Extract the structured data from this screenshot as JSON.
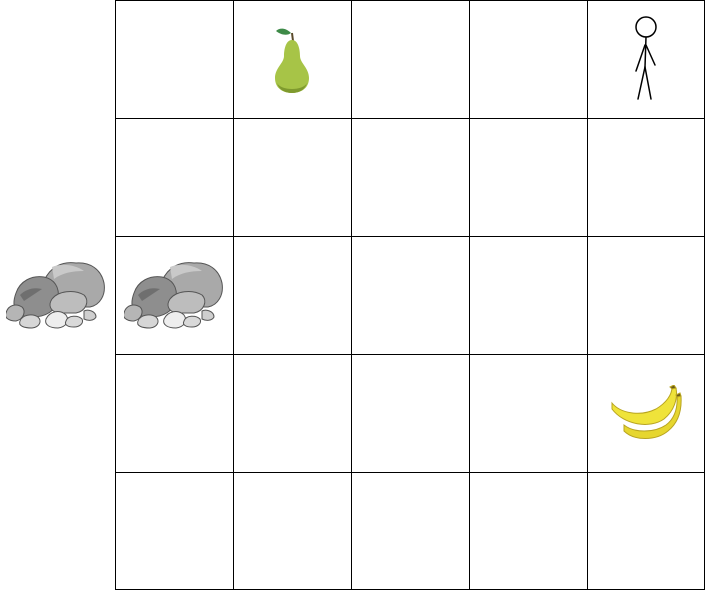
{
  "game": {
    "grid": {
      "rows": 5,
      "cols": 5,
      "line_color": "#000000"
    },
    "items": [
      {
        "name": "pear-icon",
        "kind": "pear",
        "row": 0,
        "col": 1
      },
      {
        "name": "stick-figure-player",
        "kind": "player",
        "row": 0,
        "col": 4
      },
      {
        "name": "rock-icon",
        "kind": "rock",
        "row": 2,
        "col": 0
      },
      {
        "name": "banana-icon",
        "kind": "banana",
        "row": 3,
        "col": 4
      }
    ],
    "outside_items": [
      {
        "name": "rock-icon-outside",
        "kind": "rock",
        "row": 2,
        "col": -1
      }
    ],
    "colors": {
      "pear": "#a7c447",
      "pear_leaf": "#3e8a48",
      "rock": "#9e9e9e",
      "banana": "#efe33a"
    }
  }
}
